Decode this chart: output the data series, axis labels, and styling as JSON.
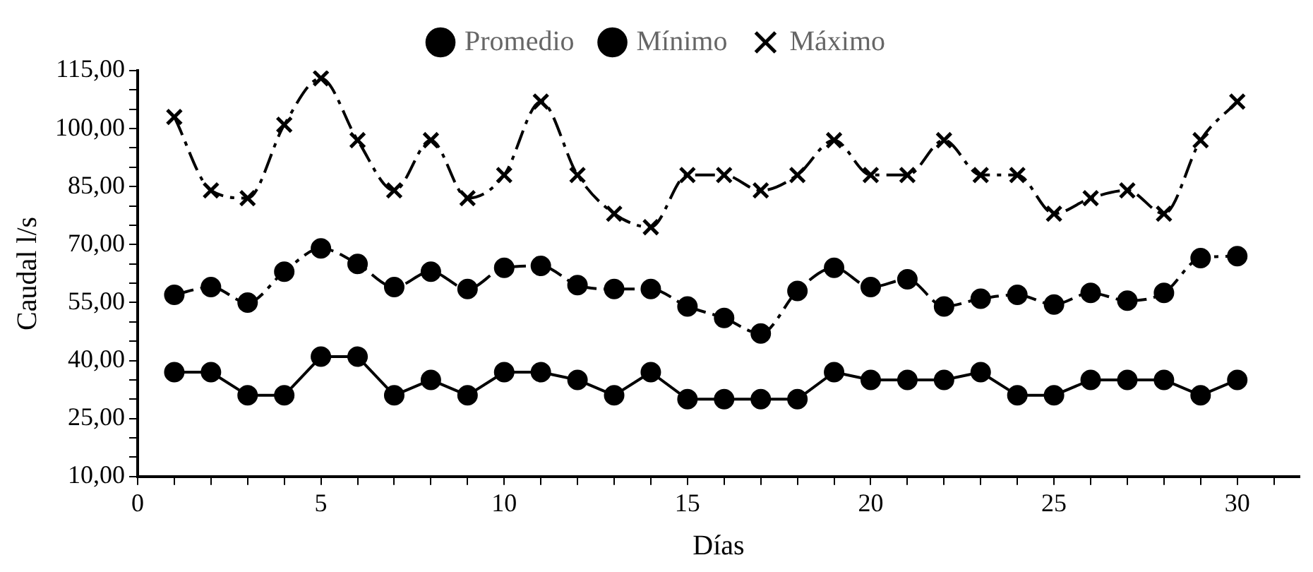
{
  "chart_data": {
    "type": "line",
    "xlabel": "Días",
    "ylabel": "Caudal l/s",
    "legend": "top",
    "grid": false,
    "x": [
      1,
      2,
      3,
      4,
      5,
      6,
      7,
      8,
      9,
      10,
      11,
      12,
      13,
      14,
      15,
      16,
      17,
      18,
      19,
      20,
      21,
      22,
      23,
      24,
      25,
      26,
      27,
      28,
      29,
      30
    ],
    "xlim": [
      0,
      31.7
    ],
    "xticks": [
      0,
      {
        "value": 1,
        "label": null
      },
      {
        "value": 2,
        "label": null
      },
      {
        "value": 3,
        "label": null
      },
      {
        "value": 4,
        "label": null
      },
      5,
      {
        "value": 6,
        "label": null
      },
      {
        "value": 7,
        "label": null
      },
      {
        "value": 8,
        "label": null
      },
      {
        "value": 9,
        "label": null
      },
      10,
      {
        "value": 11,
        "label": null
      },
      {
        "value": 12,
        "label": null
      },
      {
        "value": 13,
        "label": null
      },
      {
        "value": 14,
        "label": null
      },
      15,
      {
        "value": 16,
        "label": null
      },
      {
        "value": 17,
        "label": null
      },
      {
        "value": 18,
        "label": null
      },
      {
        "value": 19,
        "label": null
      },
      20,
      {
        "value": 21,
        "label": null
      },
      {
        "value": 22,
        "label": null
      },
      {
        "value": 23,
        "label": null
      },
      {
        "value": 24,
        "label": null
      },
      25,
      {
        "value": 26,
        "label": null
      },
      {
        "value": 27,
        "label": null
      },
      {
        "value": 28,
        "label": null
      },
      {
        "value": 29,
        "label": null
      },
      30,
      {
        "value": 31,
        "label": null
      }
    ],
    "ylim": [
      10,
      115
    ],
    "yticks": [
      {
        "value": 10,
        "label": "10,00"
      },
      {
        "value": 15,
        "label": null
      },
      {
        "value": 20,
        "label": null
      },
      {
        "value": 25,
        "label": "25,00"
      },
      {
        "value": 30,
        "label": null
      },
      {
        "value": 35,
        "label": null
      },
      {
        "value": 40,
        "label": "40,00"
      },
      {
        "value": 45,
        "label": null
      },
      {
        "value": 50,
        "label": null
      },
      {
        "value": 55,
        "label": "55,00"
      },
      {
        "value": 60,
        "label": null
      },
      {
        "value": 65,
        "label": null
      },
      {
        "value": 70,
        "label": "70,00"
      },
      {
        "value": 75,
        "label": null
      },
      {
        "value": 80,
        "label": null
      },
      {
        "value": 85,
        "label": "85,00"
      },
      {
        "value": 90,
        "label": null
      },
      {
        "value": 95,
        "label": null
      },
      {
        "value": 100,
        "label": "100,00"
      },
      {
        "value": 105,
        "label": null
      },
      {
        "value": 110,
        "label": null
      },
      {
        "value": 115,
        "label": "115,00"
      }
    ],
    "series": [
      {
        "name": "Promedio",
        "color": "#000000",
        "marker": "circle",
        "line_style": "dashed",
        "values": [
          57,
          59,
          55,
          63,
          69,
          65,
          59,
          63,
          58.5,
          64,
          64.5,
          59.5,
          58.5,
          58.5,
          54,
          51,
          47,
          58,
          64,
          59,
          61,
          54,
          56,
          57,
          54.5,
          57.5,
          55.5,
          57.5,
          66.5,
          67
        ]
      },
      {
        "name": "Mínimo",
        "color": "#000000",
        "marker": "circle",
        "line_style": "solid",
        "values": [
          37,
          37,
          31,
          31,
          41,
          41,
          31,
          35,
          31,
          37,
          37,
          35,
          31,
          37,
          30,
          30,
          30,
          30,
          37,
          35,
          35,
          35,
          37,
          31,
          31,
          35,
          35,
          35,
          31,
          35
        ]
      },
      {
        "name": "Máximo",
        "color": "#000000",
        "marker": "cross",
        "line_style": "dashed",
        "values": [
          103,
          84,
          82,
          101,
          113,
          97,
          84,
          97,
          82,
          88,
          107,
          88,
          78,
          74.5,
          88,
          88,
          84,
          88,
          97,
          88,
          88,
          97,
          88,
          88,
          78,
          82,
          84,
          78,
          97,
          107
        ]
      }
    ]
  }
}
